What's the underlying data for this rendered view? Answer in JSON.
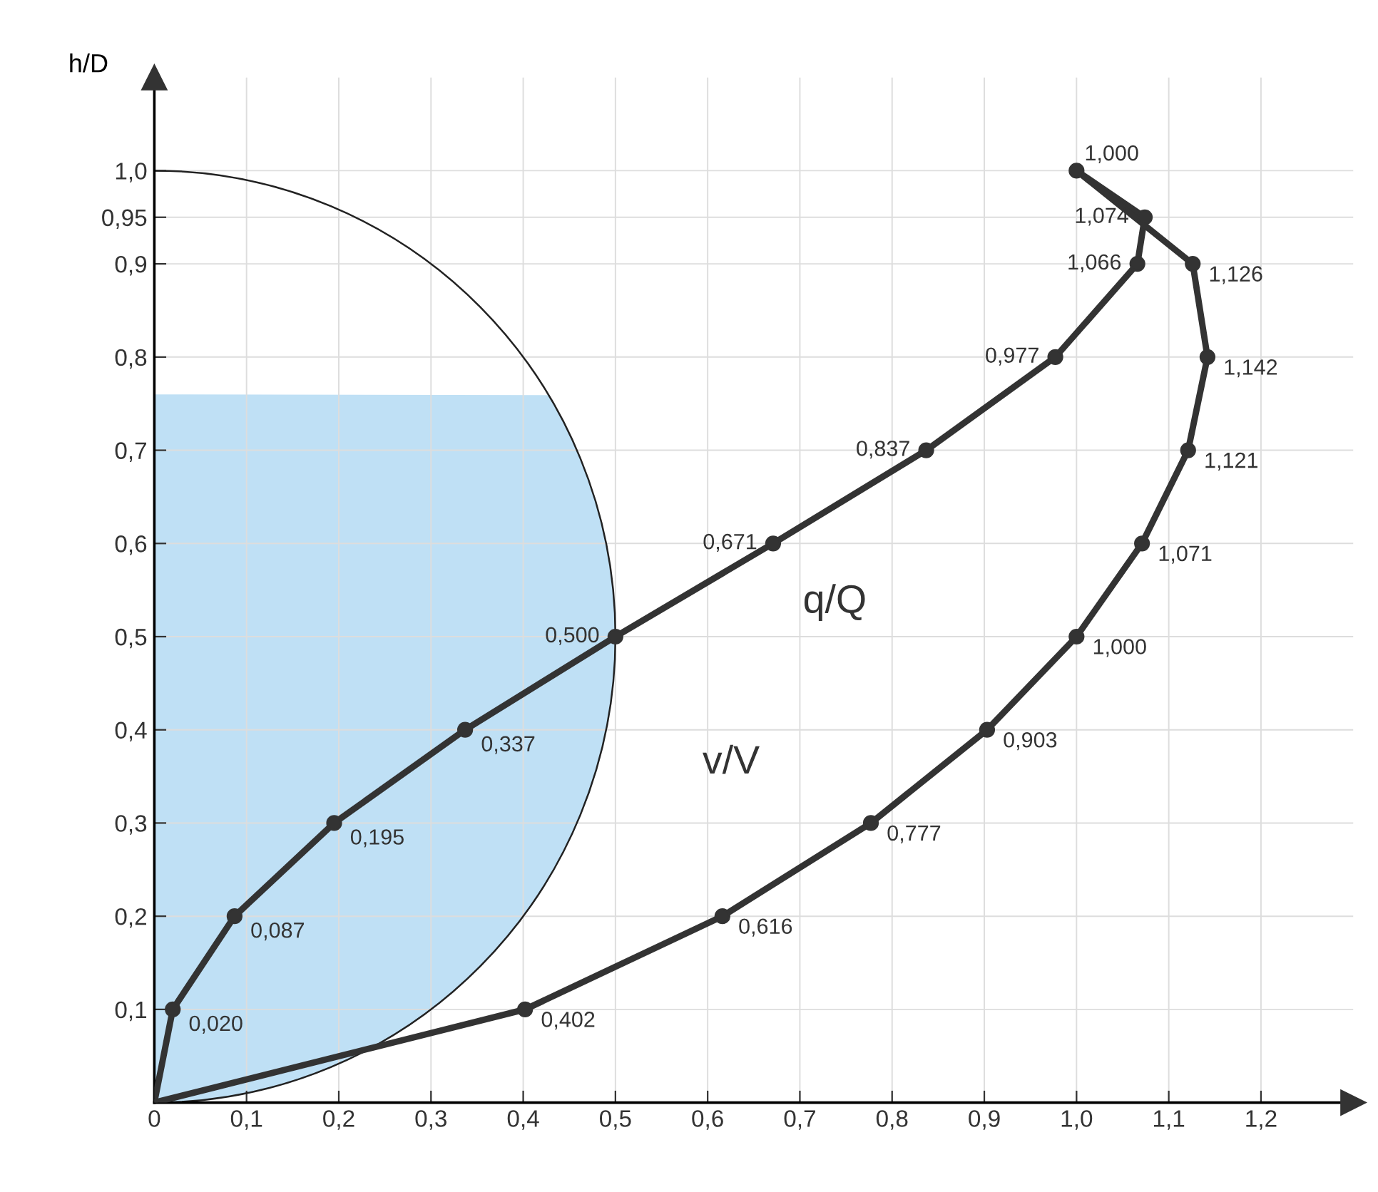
{
  "chart_data": {
    "type": "line",
    "ylabel": "h/D",
    "xlim": [
      0,
      1.3
    ],
    "ylim": [
      0,
      1.1
    ],
    "xticks": [
      0,
      {
        "value": 0.1,
        "label": "0,1"
      },
      {
        "value": 0.2,
        "label": "0,2"
      },
      {
        "value": 0.3,
        "label": "0,3"
      },
      {
        "value": 0.4,
        "label": "0,4"
      },
      {
        "value": 0.5,
        "label": "0,5"
      },
      {
        "value": 0.6,
        "label": "0,6"
      },
      {
        "value": 0.7,
        "label": "0,7"
      },
      {
        "value": 0.8,
        "label": "0,8"
      },
      {
        "value": 0.9,
        "label": "0,9"
      },
      {
        "value": 1.0,
        "label": "1,0"
      },
      {
        "value": 1.1,
        "label": "1,1"
      },
      {
        "value": 1.2,
        "label": "1,2"
      }
    ],
    "yticks": [
      {
        "value": 0.1,
        "label": "0,1"
      },
      {
        "value": 0.2,
        "label": "0,2"
      },
      {
        "value": 0.3,
        "label": "0,3"
      },
      {
        "value": 0.4,
        "label": "0,4"
      },
      {
        "value": 0.5,
        "label": "0,5"
      },
      {
        "value": 0.6,
        "label": "0,6"
      },
      {
        "value": 0.7,
        "label": "0,7"
      },
      {
        "value": 0.8,
        "label": "0,8"
      },
      {
        "value": 0.9,
        "label": "0,9"
      },
      {
        "value": 0.95,
        "label": "0,95"
      },
      {
        "value": 1.0,
        "label": "1,0"
      }
    ],
    "grid": true,
    "orientation": "horizontal",
    "marker": "circle",
    "line_style": "solid",
    "series": [
      {
        "name": "q/Q",
        "color": "#333333",
        "values": [
          0,
          0.02,
          0.087,
          0.195,
          0.337,
          0.5,
          0.671,
          0.837,
          0.977,
          1.066,
          1.074,
          1.0
        ],
        "x": [
          0,
          0.1,
          0.2,
          0.3,
          0.4,
          0.5,
          0.6,
          0.7,
          0.8,
          0.9,
          0.95,
          1.0
        ],
        "value_labels": [
          null,
          "0,020",
          "0,087",
          "0,195",
          "0,337",
          "0,500",
          "0,671",
          "0,837",
          "0,977",
          "1,066",
          "1,074",
          null
        ]
      },
      {
        "name": "v/V",
        "color": "#333333",
        "values": [
          0,
          0.402,
          0.616,
          0.777,
          0.903,
          1.0,
          1.071,
          1.121,
          1.142,
          1.126,
          1.0
        ],
        "x": [
          0,
          0.1,
          0.2,
          0.3,
          0.4,
          0.5,
          0.6,
          0.7,
          0.8,
          0.9,
          1.0
        ],
        "value_labels": [
          null,
          "0,402",
          "0,616",
          "0,777",
          "0,903",
          "1,000",
          "1,071",
          "1,121",
          "1,142",
          "1,126",
          "1,000"
        ]
      }
    ]
  }
}
